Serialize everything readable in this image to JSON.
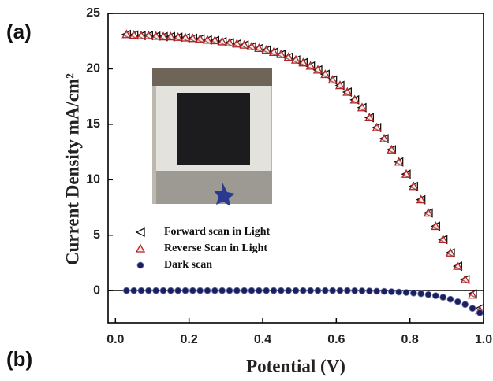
{
  "chart_data": {
    "type": "scatter",
    "panel_labels": [
      "(a)",
      "(b)"
    ],
    "xlabel": "Potential (V)",
    "ylabel": "Current Density mA/cm²",
    "xlim": [
      -0.02,
      1.0
    ],
    "xticks": [
      {
        "value": 0,
        "label": "0.0"
      },
      0.2,
      0.4,
      0.6,
      0.8,
      {
        "value": 1,
        "label": "1.0"
      }
    ],
    "ylim": [
      -2.9,
      25
    ],
    "yticks": [
      0,
      5,
      10,
      15,
      20,
      25
    ],
    "zero_line": true,
    "legend_position": "center left",
    "x": [
      0.03,
      0.05,
      0.07,
      0.09,
      0.11,
      0.13,
      0.15,
      0.17,
      0.19,
      0.21,
      0.23,
      0.25,
      0.27,
      0.29,
      0.31,
      0.33,
      0.35,
      0.37,
      0.39,
      0.41,
      0.43,
      0.45,
      0.47,
      0.49,
      0.51,
      0.53,
      0.55,
      0.57,
      0.59,
      0.61,
      0.63,
      0.65,
      0.67,
      0.69,
      0.71,
      0.73,
      0.75,
      0.77,
      0.79,
      0.81,
      0.83,
      0.85,
      0.87,
      0.89,
      0.91,
      0.93,
      0.95,
      0.97,
      0.99
    ],
    "series": [
      {
        "name": "Forward scan in Light",
        "marker": "triangle-left",
        "color": "#111111",
        "values": [
          23.1,
          23.05,
          23.0,
          23.0,
          22.95,
          22.9,
          22.9,
          22.85,
          22.8,
          22.75,
          22.7,
          22.6,
          22.55,
          22.45,
          22.35,
          22.25,
          22.15,
          22.0,
          21.85,
          21.7,
          21.5,
          21.3,
          21.05,
          20.8,
          20.55,
          20.25,
          19.9,
          19.5,
          19.0,
          18.5,
          17.9,
          17.2,
          16.5,
          15.6,
          14.7,
          13.7,
          12.7,
          11.6,
          10.5,
          9.4,
          8.2,
          7.0,
          5.8,
          4.6,
          3.4,
          2.2,
          1.0,
          -0.3,
          -1.6
        ]
      },
      {
        "name": "Reverse Scan in Light",
        "marker": "triangle-up",
        "color": "#b22222",
        "values": [
          23.1,
          23.05,
          23.0,
          23.0,
          22.95,
          22.9,
          22.9,
          22.85,
          22.8,
          22.75,
          22.7,
          22.6,
          22.55,
          22.45,
          22.35,
          22.25,
          22.15,
          22.0,
          21.85,
          21.7,
          21.5,
          21.3,
          21.05,
          20.8,
          20.55,
          20.25,
          19.9,
          19.5,
          19.0,
          18.5,
          17.9,
          17.2,
          16.5,
          15.6,
          14.7,
          13.7,
          12.7,
          11.6,
          10.5,
          9.4,
          8.2,
          7.0,
          5.8,
          4.6,
          3.4,
          2.2,
          1.0,
          -0.4,
          -1.8
        ]
      },
      {
        "name": "Dark scan",
        "marker": "circle",
        "color": "#1a1f5e",
        "values": [
          0,
          0,
          0,
          0,
          0,
          0,
          0,
          0,
          0,
          0,
          0,
          0,
          0,
          0,
          0,
          0,
          0,
          0,
          0,
          0,
          0,
          0,
          0,
          0,
          0,
          0,
          0,
          0,
          0,
          0,
          0,
          -0.01,
          -0.02,
          -0.03,
          -0.05,
          -0.07,
          -0.1,
          -0.13,
          -0.17,
          -0.22,
          -0.28,
          -0.36,
          -0.46,
          -0.6,
          -0.78,
          -1.0,
          -1.25,
          -1.6,
          -2.0
        ]
      }
    ]
  }
}
